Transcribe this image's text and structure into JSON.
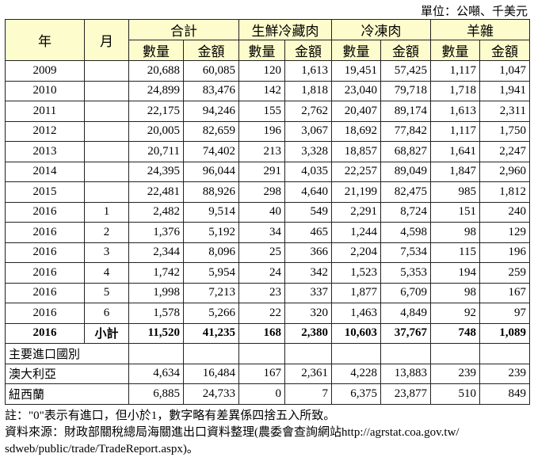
{
  "unit_label": "單位：公噸、千美元",
  "headers": {
    "year": "年",
    "month": "月",
    "groups": [
      "合計",
      "生鮮冷藏肉",
      "冷凍肉",
      "羊雜"
    ],
    "sub": [
      "數量",
      "金額"
    ]
  },
  "rows": [
    {
      "year": "2009",
      "month": "",
      "vals": [
        "20,688",
        "60,085",
        "120",
        "1,613",
        "19,451",
        "57,425",
        "1,117",
        "1,047"
      ]
    },
    {
      "year": "2010",
      "month": "",
      "vals": [
        "24,899",
        "83,476",
        "142",
        "1,818",
        "23,040",
        "79,718",
        "1,718",
        "1,941"
      ]
    },
    {
      "year": "2011",
      "month": "",
      "vals": [
        "22,175",
        "94,246",
        "155",
        "2,762",
        "20,407",
        "89,174",
        "1,613",
        "2,311"
      ]
    },
    {
      "year": "2012",
      "month": "",
      "vals": [
        "20,005",
        "82,659",
        "196",
        "3,067",
        "18,692",
        "77,842",
        "1,117",
        "1,750"
      ]
    },
    {
      "year": "2013",
      "month": "",
      "vals": [
        "20,711",
        "74,402",
        "213",
        "3,328",
        "18,857",
        "68,827",
        "1,641",
        "2,247"
      ]
    },
    {
      "year": "2014",
      "month": "",
      "vals": [
        "24,395",
        "96,044",
        "291",
        "4,035",
        "22,257",
        "89,049",
        "1,847",
        "2,960"
      ]
    },
    {
      "year": "2015",
      "month": "",
      "vals": [
        "22,481",
        "88,926",
        "298",
        "4,640",
        "21,199",
        "82,475",
        "985",
        "1,812"
      ]
    },
    {
      "year": "2016",
      "month": "1",
      "vals": [
        "2,482",
        "9,514",
        "40",
        "549",
        "2,291",
        "8,724",
        "151",
        "240"
      ]
    },
    {
      "year": "2016",
      "month": "2",
      "vals": [
        "1,376",
        "5,192",
        "34",
        "465",
        "1,244",
        "4,598",
        "98",
        "129"
      ]
    },
    {
      "year": "2016",
      "month": "3",
      "vals": [
        "2,344",
        "8,096",
        "25",
        "366",
        "2,204",
        "7,534",
        "115",
        "196"
      ]
    },
    {
      "year": "2016",
      "month": "4",
      "vals": [
        "1,742",
        "5,954",
        "24",
        "342",
        "1,523",
        "5,353",
        "194",
        "259"
      ]
    },
    {
      "year": "2016",
      "month": "5",
      "vals": [
        "1,998",
        "7,213",
        "23",
        "337",
        "1,877",
        "6,709",
        "98",
        "167"
      ]
    },
    {
      "year": "2016",
      "month": "6",
      "vals": [
        "1,578",
        "5,266",
        "22",
        "320",
        "1,463",
        "4,849",
        "92",
        "97"
      ]
    }
  ],
  "subtotal": {
    "year": "2016",
    "month": "小計",
    "vals": [
      "11,520",
      "41,235",
      "168",
      "2,380",
      "10,603",
      "37,767",
      "748",
      "1,089"
    ]
  },
  "section_label": "主要進口國別",
  "countries": [
    {
      "name": "澳大利亞",
      "vals": [
        "4,634",
        "16,484",
        "167",
        "2,361",
        "4,228",
        "13,883",
        "239",
        "239"
      ]
    },
    {
      "name": "紐西蘭",
      "vals": [
        "6,885",
        "24,733",
        "0",
        "7",
        "6,375",
        "23,877",
        "510",
        "849"
      ]
    }
  ],
  "notes": [
    "註：\"0\"表示有進口，但小於1，數字略有差異係四捨五入所致。",
    "資料來源：財政部關稅總局海關進出口資料整理(農委會查詢網站http://agrstat.coa.gov.tw/",
    "sdweb/public/trade/TradeReport.aspx)。"
  ]
}
